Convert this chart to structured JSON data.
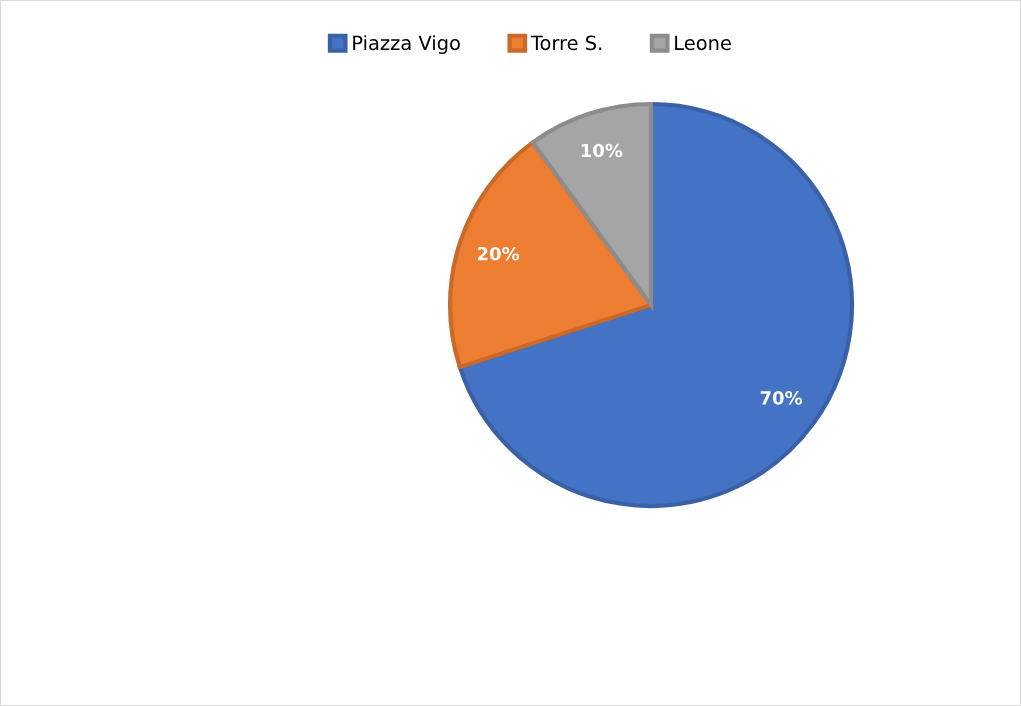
{
  "chart_data": {
    "type": "pie",
    "categories": [
      "Piazza Vigo",
      "Torre S.",
      "Leone"
    ],
    "values": [
      70,
      20,
      10
    ],
    "colors": [
      "#4472c4",
      "#ed7d31",
      "#a5a5a5"
    ],
    "value_labels": [
      "70%",
      "20%",
      "10%"
    ],
    "legend": "top"
  }
}
